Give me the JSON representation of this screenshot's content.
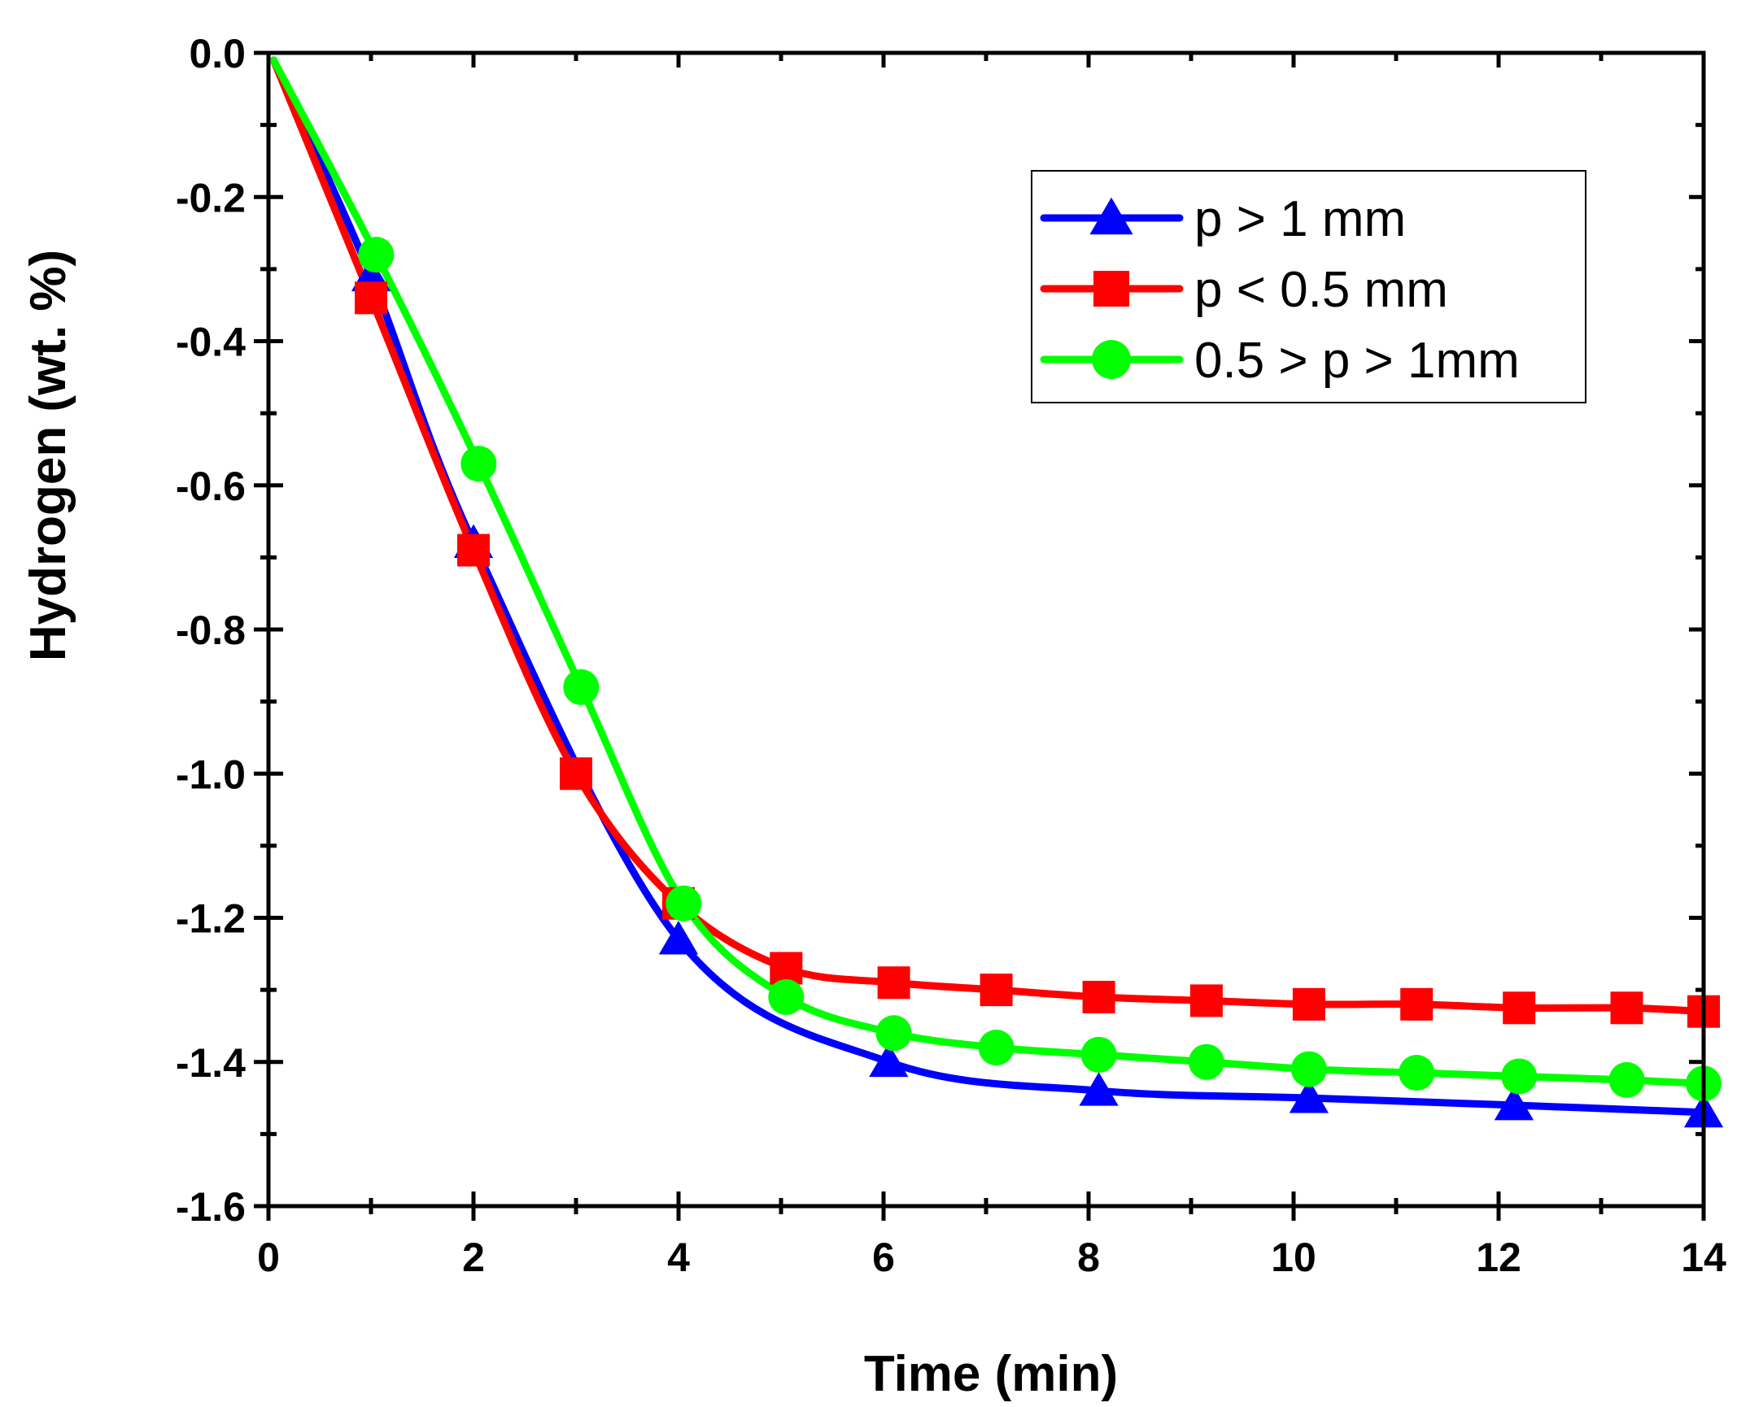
{
  "chart_data": {
    "type": "line",
    "title": "",
    "xlabel": "Time (min)",
    "ylabel": "Hydrogen (wt. %)",
    "xlim": [
      0,
      14
    ],
    "ylim": [
      -1.6,
      0.0
    ],
    "xticks": [
      0,
      2,
      4,
      6,
      8,
      10,
      12,
      14
    ],
    "xtick_labels": [
      "0",
      "2",
      "4",
      "6",
      "8",
      "10",
      "12",
      "14"
    ],
    "yticks": [
      0.0,
      -0.2,
      -0.4,
      -0.6,
      -0.8,
      -1.0,
      -1.2,
      -1.4,
      -1.6
    ],
    "ytick_labels": [
      "0.0",
      "-0.2",
      "-0.4",
      "-0.6",
      "-0.8",
      "-1.0",
      "-1.2",
      "-1.4",
      "-1.6"
    ],
    "grid": false,
    "legend_position": "top-right",
    "series": [
      {
        "name": "p > 1 mm",
        "color": "#0000ff",
        "marker": "triangle",
        "x": [
          0.05,
          1.0,
          2.0,
          4.0,
          6.05,
          8.1,
          10.15,
          12.15,
          14.0
        ],
        "y": [
          -0.01,
          -0.31,
          -0.68,
          -1.23,
          -1.4,
          -1.44,
          -1.45,
          -1.46,
          -1.47
        ]
      },
      {
        "name": "p < 0.5 mm",
        "color": "#ff0000",
        "marker": "square",
        "x": [
          0.05,
          1.0,
          2.0,
          3.0,
          4.0,
          5.05,
          6.1,
          7.1,
          8.1,
          9.15,
          10.15,
          11.2,
          12.2,
          13.25,
          14.0
        ],
        "y": [
          -0.01,
          -0.34,
          -0.69,
          -1.0,
          -1.18,
          -1.27,
          -1.29,
          -1.3,
          -1.31,
          -1.315,
          -1.32,
          -1.32,
          -1.325,
          -1.325,
          -1.33
        ]
      },
      {
        "name": "0.5 > p > 1mm",
        "color": "#00ff00",
        "marker": "circle",
        "x": [
          0.05,
          1.05,
          2.05,
          3.05,
          4.05,
          5.05,
          6.1,
          7.1,
          8.1,
          9.15,
          10.15,
          11.2,
          12.2,
          13.25,
          14.0
        ],
        "y": [
          -0.01,
          -0.28,
          -0.57,
          -0.88,
          -1.18,
          -1.31,
          -1.36,
          -1.38,
          -1.39,
          -1.4,
          -1.41,
          -1.415,
          -1.42,
          -1.425,
          -1.43
        ]
      }
    ]
  }
}
